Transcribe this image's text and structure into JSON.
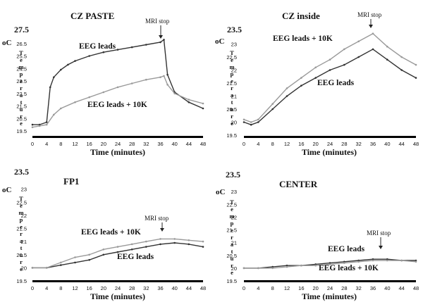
{
  "chart_data": [
    {
      "type": "line",
      "title": "CZ PASTE",
      "xlabel": "Time (minutes)",
      "ylabel": "Temperature",
      "unit": "oC",
      "xlim": [
        0,
        48
      ],
      "ylim": [
        19.5,
        27.5
      ],
      "x_ticks": [
        0,
        4,
        8,
        12,
        16,
        20,
        24,
        28,
        32,
        36,
        40,
        44,
        48
      ],
      "y_ticks": [
        "19.5",
        "20.5",
        "21.5",
        "22.5",
        "23.5",
        "24.5",
        "25.5",
        "26.5",
        "27.5"
      ],
      "series": [
        {
          "name": "EEG leads",
          "color": "#333333",
          "x": [
            0,
            2,
            4,
            5,
            6,
            8,
            10,
            12,
            16,
            20,
            24,
            28,
            32,
            36,
            37,
            38,
            40,
            44,
            48
          ],
          "y": [
            20.0,
            20.0,
            20.2,
            23.0,
            23.8,
            24.4,
            24.8,
            25.1,
            25.5,
            25.8,
            26.0,
            26.2,
            26.4,
            26.6,
            26.8,
            24.0,
            22.6,
            21.8,
            21.3
          ]
        },
        {
          "name": "EEG leads + 10K",
          "color": "#9a9a9a",
          "x": [
            0,
            2,
            4,
            6,
            8,
            12,
            16,
            20,
            24,
            28,
            32,
            36,
            37,
            38,
            40,
            44,
            48
          ],
          "y": [
            19.8,
            19.9,
            20.0,
            20.8,
            21.3,
            21.8,
            22.2,
            22.6,
            23.0,
            23.3,
            23.6,
            23.8,
            23.9,
            23.2,
            22.5,
            22.0,
            21.7
          ]
        }
      ],
      "annotations": [
        {
          "text": "MRI stop",
          "x": 37
        }
      ]
    },
    {
      "type": "line",
      "title": "CZ inside",
      "xlabel": "Time (minutes)",
      "ylabel": "Temperature",
      "unit": "oC",
      "xlim": [
        0,
        48
      ],
      "ylim": [
        19.5,
        23.5
      ],
      "x_ticks": [
        0,
        4,
        8,
        12,
        16,
        20,
        24,
        28,
        32,
        36,
        40,
        44,
        48
      ],
      "y_ticks": [
        "19.5",
        "20",
        "20.5",
        "21",
        "21.5",
        "22",
        "22.5",
        "23",
        "23.5"
      ],
      "series": [
        {
          "name": "EEG leads",
          "color": "#333333",
          "x": [
            0,
            2,
            4,
            8,
            12,
            16,
            20,
            24,
            28,
            32,
            36,
            40,
            44,
            48
          ],
          "y": [
            20.0,
            19.9,
            20.0,
            20.5,
            21.0,
            21.4,
            21.7,
            22.0,
            22.2,
            22.5,
            22.8,
            22.4,
            22.0,
            21.7
          ]
        },
        {
          "name": "EEG leads + 10K",
          "color": "#9a9a9a",
          "x": [
            0,
            2,
            4,
            8,
            12,
            16,
            20,
            24,
            28,
            32,
            36,
            40,
            44,
            48
          ],
          "y": [
            20.1,
            20.0,
            20.1,
            20.7,
            21.3,
            21.7,
            22.1,
            22.4,
            22.8,
            23.1,
            23.4,
            22.9,
            22.5,
            22.2
          ]
        }
      ],
      "annotations": [
        {
          "text": "MRI stop",
          "x": 36
        }
      ]
    },
    {
      "type": "line",
      "title": "FP1",
      "xlabel": "Time (minutes)",
      "ylabel": "Temperature",
      "unit": "oC",
      "xlim": [
        0,
        48
      ],
      "ylim": [
        19.5,
        23.5
      ],
      "x_ticks": [
        0,
        4,
        8,
        12,
        16,
        20,
        24,
        28,
        32,
        36,
        40,
        44,
        48
      ],
      "y_ticks": [
        "19.5",
        "20",
        "20.5",
        "21",
        "21.5",
        "22",
        "22.5",
        "23",
        "23.5"
      ],
      "series": [
        {
          "name": "EEG leads",
          "color": "#333333",
          "x": [
            0,
            4,
            8,
            12,
            16,
            20,
            24,
            28,
            32,
            36,
            40,
            44,
            48
          ],
          "y": [
            20.0,
            20.0,
            20.1,
            20.2,
            20.3,
            20.5,
            20.6,
            20.7,
            20.8,
            20.9,
            20.95,
            20.9,
            20.8
          ]
        },
        {
          "name": "EEG leads + 10K",
          "color": "#9a9a9a",
          "x": [
            0,
            4,
            8,
            12,
            16,
            20,
            24,
            28,
            32,
            36,
            40,
            44,
            48
          ],
          "y": [
            20.0,
            20.0,
            20.2,
            20.4,
            20.5,
            20.7,
            20.8,
            20.9,
            21.0,
            21.1,
            21.1,
            21.05,
            21.0
          ]
        }
      ],
      "annotations": [
        {
          "text": "MRI stop",
          "x": 37
        }
      ]
    },
    {
      "type": "line",
      "title": "CENTER",
      "xlabel": "Time (minutes)",
      "ylabel": "Temperature",
      "unit": "oC",
      "xlim": [
        0,
        48
      ],
      "ylim": [
        19.5,
        23.5
      ],
      "x_ticks": [
        0,
        4,
        8,
        12,
        16,
        20,
        24,
        28,
        32,
        36,
        40,
        44,
        48
      ],
      "y_ticks": [
        "19.5",
        "20",
        "20.5",
        "21",
        "21.5",
        "22",
        "22.5",
        "23",
        "23.5"
      ],
      "series": [
        {
          "name": "EEG leads",
          "color": "#333333",
          "x": [
            0,
            4,
            8,
            12,
            16,
            20,
            24,
            28,
            32,
            36,
            40,
            44,
            48
          ],
          "y": [
            20.0,
            20.0,
            20.05,
            20.1,
            20.1,
            20.15,
            20.2,
            20.25,
            20.3,
            20.35,
            20.35,
            20.3,
            20.3
          ]
        },
        {
          "name": "EEG leads + 10K",
          "color": "#9a9a9a",
          "x": [
            0,
            4,
            8,
            12,
            16,
            20,
            24,
            28,
            32,
            36,
            40,
            44,
            48
          ],
          "y": [
            20.0,
            20.0,
            20.0,
            20.05,
            20.1,
            20.1,
            20.15,
            20.2,
            20.25,
            20.3,
            20.3,
            20.3,
            20.25
          ]
        }
      ],
      "annotations": [
        {
          "text": "MRI stop",
          "x": 38
        }
      ]
    }
  ]
}
